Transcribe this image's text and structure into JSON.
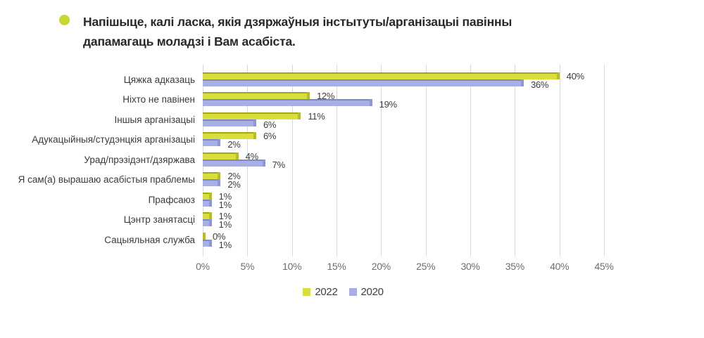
{
  "page": {
    "background": "#ffffff"
  },
  "header": {
    "bullet_color": "#c9d62f",
    "title": "Напішыце, калі ласка, якія дзяржаўныя інстытуты/арганізацыі павінны\nдапамагаць моладзі і Вам асабіста."
  },
  "chart_data": {
    "type": "bar",
    "orientation": "horizontal",
    "title": "Напішыце, калі ласка, якія дзяржаўныя інстытуты/арганізацыі павінны дапамагаць моладзі і Вам асабіста.",
    "categories": [
      "Цяжка адказаць",
      "Ніхто не павінен",
      "Іншыя арганізацыі",
      "Адукацыйныя/студэнцкія арганізацыі",
      "Урад/прэзідэнт/дзяржава",
      "Я сам(а) вырашаю асабістыя праблемы",
      "Прафсаюз",
      "Цэнтр занятасці",
      "Сацыяльная служба"
    ],
    "series": [
      {
        "name": "2022",
        "values": [
          40,
          12,
          11,
          6,
          4,
          2,
          1,
          1,
          0
        ],
        "color": "#d9de3b",
        "color_dark": "#a2a918",
        "color_cap": "#b8bd24"
      },
      {
        "name": "2020",
        "values": [
          36,
          19,
          6,
          2,
          7,
          2,
          1,
          1,
          1
        ],
        "color": "#a7afe4",
        "color_dark": "#7d87cf",
        "color_cap": "#8d96d9"
      }
    ],
    "value_suffix": "%",
    "xlim": [
      0,
      45
    ],
    "x_ticks": [
      "0%",
      "5%",
      "10%",
      "15%",
      "20%",
      "25%",
      "30%",
      "35%",
      "40%",
      "45%"
    ],
    "grid": true,
    "gridline_color": "#d9d9d9",
    "legend_position": "bottom"
  }
}
